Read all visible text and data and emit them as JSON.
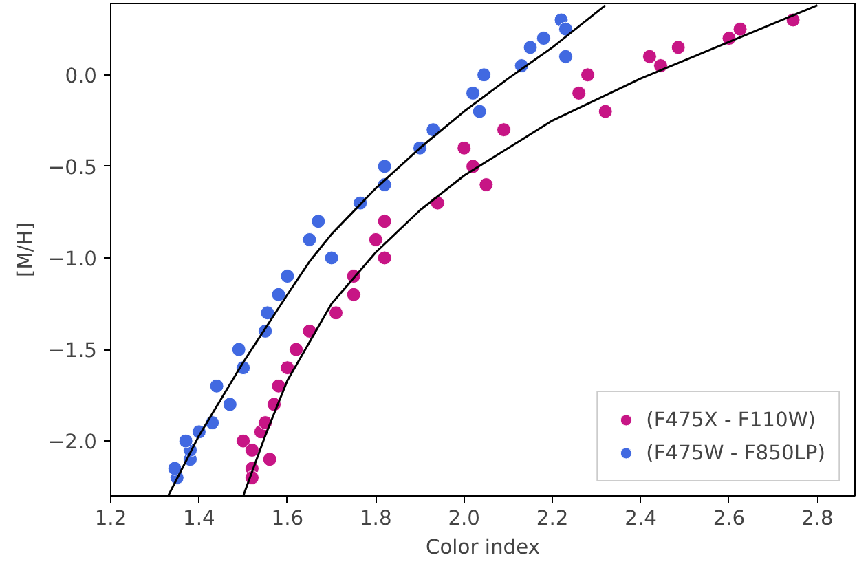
{
  "chart_data": {
    "type": "scatter",
    "xlabel": "Color index",
    "ylabel": "[M/H]",
    "xlim": [
      1.2,
      2.885
    ],
    "ylim": [
      -2.3,
      0.39
    ],
    "xticks": [
      1.2,
      1.4,
      1.6,
      1.8,
      {
        "value": 2.0,
        "label": "2.0"
      },
      2.2,
      2.4,
      2.6,
      2.8
    ],
    "yticks": [
      {
        "value": -2.0,
        "label": "−2.0"
      },
      {
        "value": -1.5,
        "label": "−1.5"
      },
      {
        "value": -1.0,
        "label": "−1.0"
      },
      {
        "value": -0.5,
        "label": "−0.5"
      },
      {
        "value": 0.0,
        "label": "0.0"
      }
    ],
    "grid": false,
    "legend": "bottom right",
    "series": [
      {
        "name": "(F475X - F110W)",
        "color": "#c71585",
        "marker": "circle",
        "x": [
          1.5,
          1.52,
          1.56,
          1.52,
          1.52,
          1.54,
          1.55,
          1.57,
          1.58,
          1.6,
          1.62,
          1.65,
          1.71,
          1.75,
          1.75,
          1.82,
          1.8,
          1.82,
          1.94,
          2.0,
          2.02,
          2.05,
          2.09,
          2.26,
          2.28,
          2.32,
          2.42,
          2.445,
          2.485,
          2.6,
          2.625,
          2.745
        ],
        "values": [
          -2.0,
          -2.05,
          -2.1,
          -2.15,
          -2.2,
          -1.95,
          -1.9,
          -1.8,
          -1.7,
          -1.6,
          -1.5,
          -1.4,
          -1.3,
          -1.2,
          -1.1,
          -1.0,
          -0.9,
          -0.8,
          -0.7,
          -0.4,
          -0.5,
          -0.6,
          -0.3,
          -0.1,
          0.0,
          -0.2,
          0.1,
          0.05,
          0.15,
          0.2,
          0.25,
          0.3
        ]
      },
      {
        "name": "(F475W - F850LP)",
        "color": "#4169e1",
        "marker": "circle",
        "x": [
          1.35,
          1.345,
          1.38,
          1.38,
          1.37,
          1.4,
          1.43,
          1.47,
          1.44,
          1.5,
          1.49,
          1.55,
          1.555,
          1.58,
          1.6,
          1.7,
          1.65,
          1.67,
          1.765,
          1.82,
          1.82,
          1.9,
          1.93,
          2.035,
          2.02,
          2.045,
          2.13,
          2.15,
          2.18,
          2.22,
          2.23,
          2.23
        ],
        "values": [
          -2.2,
          -2.15,
          -2.1,
          -2.05,
          -2.0,
          -1.95,
          -1.9,
          -1.8,
          -1.7,
          -1.6,
          -1.5,
          -1.4,
          -1.3,
          -1.2,
          -1.1,
          -1.0,
          -0.9,
          -0.8,
          -0.7,
          -0.6,
          -0.5,
          -0.4,
          -0.3,
          -0.2,
          -0.1,
          0.0,
          0.05,
          0.15,
          0.2,
          0.3,
          0.25,
          0.1
        ]
      },
      {
        "type": "line",
        "marker": "none",
        "color": "#000000",
        "x": [
          1.5,
          1.55,
          1.6,
          1.7,
          1.8,
          1.9,
          2.0,
          2.1,
          2.2,
          2.4,
          2.6,
          2.8
        ],
        "values": [
          -2.3,
          -1.97,
          -1.67,
          -1.25,
          -0.97,
          -0.74,
          -0.55,
          -0.4,
          -0.25,
          -0.02,
          0.18,
          0.38
        ]
      },
      {
        "type": "line",
        "marker": "none",
        "color": "#000000",
        "x": [
          1.33,
          1.4,
          1.5,
          1.6,
          1.65,
          1.7,
          1.8,
          1.9,
          2.0,
          2.1,
          2.2,
          2.32
        ],
        "values": [
          -2.3,
          -1.97,
          -1.57,
          -1.2,
          -1.02,
          -0.87,
          -0.62,
          -0.4,
          -0.2,
          -0.02,
          0.15,
          0.38
        ]
      }
    ]
  }
}
